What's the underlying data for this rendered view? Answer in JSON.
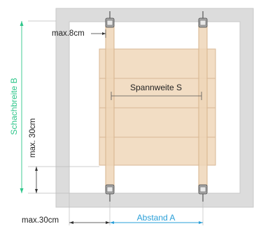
{
  "labels": {
    "max_top": "max.8cm",
    "span": "Spannweite S",
    "shaft_width": "Schachbreite B",
    "max_left": "max. 30cm",
    "max_bottom": "max.30cm",
    "distance": "Abstand A"
  },
  "colors": {
    "frame": "#dcdcdc",
    "frame_line": "#c8c8c8",
    "board": "#f2ddc4",
    "board_line": "#d8b896",
    "rail": "#efd6b9",
    "rail_line": "#d7b48d",
    "dimension_dark": "#333333",
    "dimension_accent": "#2ec68a",
    "distance_accent": "#2a9fd8",
    "anchor": "#555555"
  }
}
